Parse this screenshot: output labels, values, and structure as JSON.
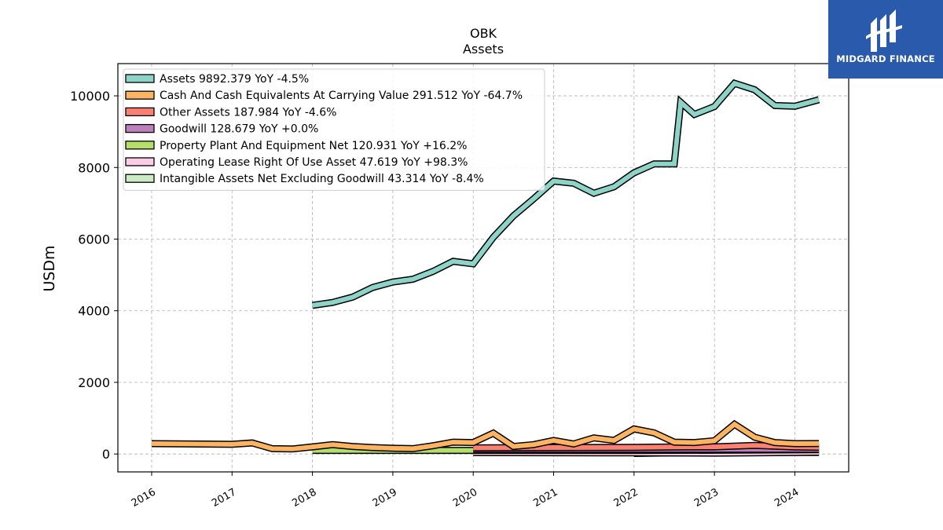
{
  "brand": {
    "name": "MIDGARD FINANCE",
    "logo_icon": "midgard-logo-icon",
    "color": "#2a5aac"
  },
  "chart_data": {
    "type": "line",
    "title": "OBK",
    "subtitle": "Assets",
    "ylabel": "USDm",
    "xlabel": "",
    "ylim": [
      -500,
      10900
    ],
    "xlim": [
      2015.58,
      2024.67
    ],
    "yticks": [
      0,
      2000,
      4000,
      6000,
      8000,
      10000
    ],
    "ytick_labels": [
      "0",
      "2000",
      "4000",
      "6000",
      "8000",
      "10000"
    ],
    "xticks": [
      2016,
      2017,
      2018,
      2019,
      2020,
      2021,
      2022,
      2023,
      2024
    ],
    "xtick_labels": [
      "2016",
      "2017",
      "2018",
      "2019",
      "2020",
      "2021",
      "2022",
      "2023",
      "2024"
    ],
    "grid": true,
    "legend_position": "top-left",
    "series": [
      {
        "name": "Assets",
        "legend": "Assets  9892.379 YoY -4.5%",
        "color": "#8dd3c7",
        "x": [
          2018.0,
          2018.25,
          2018.5,
          2018.75,
          2019.0,
          2019.25,
          2019.5,
          2019.75,
          2020.0,
          2020.25,
          2020.5,
          2020.75,
          2021.0,
          2021.25,
          2021.5,
          2021.75,
          2022.0,
          2022.25,
          2022.5,
          2022.58,
          2022.75,
          2023.0,
          2023.25,
          2023.5,
          2023.75,
          2024.0,
          2024.3
        ],
        "y": [
          4150,
          4230,
          4380,
          4650,
          4800,
          4880,
          5100,
          5380,
          5310,
          6050,
          6650,
          7120,
          7620,
          7560,
          7280,
          7460,
          7850,
          8100,
          8100,
          9820,
          9480,
          9700,
          10350,
          10170,
          9730,
          9710,
          9892
        ]
      },
      {
        "name": "Cash And Cash Equivalents At Carrying Value",
        "legend": "Cash And Cash Equivalents At Carrying Value  291.512 YoY -64.7%",
        "color": "#fdb462",
        "x": [
          2016.0,
          2017.0,
          2017.25,
          2017.5,
          2017.75,
          2018.0,
          2018.25,
          2018.5,
          2018.75,
          2019.0,
          2019.25,
          2019.5,
          2019.75,
          2020.0,
          2020.25,
          2020.5,
          2020.75,
          2021.0,
          2021.25,
          2021.5,
          2021.75,
          2022.0,
          2022.25,
          2022.5,
          2022.75,
          2023.0,
          2023.25,
          2023.5,
          2023.75,
          2024.0,
          2024.3
        ],
        "y": [
          290,
          270,
          310,
          150,
          140,
          200,
          260,
          210,
          180,
          160,
          150,
          230,
          330,
          320,
          580,
          210,
          260,
          380,
          280,
          450,
          380,
          700,
          590,
          330,
          320,
          370,
          830,
          470,
          320,
          290,
          292
        ]
      },
      {
        "name": "Other Assets",
        "legend": "Other Assets  187.984 YoY -4.6%",
        "color": "#fb8072",
        "x": [
          2020.0,
          2021.0,
          2022.0,
          2022.5,
          2023.0,
          2023.5,
          2024.0,
          2024.3
        ],
        "y": [
          170,
          180,
          185,
          195,
          200,
          240,
          197,
          188
        ]
      },
      {
        "name": "Goodwill",
        "legend": "Goodwill  128.679 YoY +0.0%",
        "color": "#bc80bd",
        "x": [
          2020.0,
          2024.3
        ],
        "y": [
          128.679,
          128.679
        ]
      },
      {
        "name": "Property Plant And Equipment Net",
        "legend": "Property Plant And Equipment Net  120.931 YoY +16.2%",
        "color": "#b3de69",
        "x": [
          2018.0,
          2020.0,
          2022.0,
          2023.0,
          2024.3
        ],
        "y": [
          100,
          100,
          100,
          105,
          121
        ]
      },
      {
        "name": "Operating Lease Right Of Use Asset",
        "legend": "Operating Lease Right Of Use Asset  47.619 YoY +98.3%",
        "color": "#fccde5",
        "x": [
          2020.0,
          2022.0,
          2023.0,
          2024.3
        ],
        "y": [
          40,
          30,
          24,
          47.6
        ]
      },
      {
        "name": "Intangible Assets Net Excluding Goodwill",
        "legend": "Intangible Assets Net Excluding Goodwill  43.314 YoY -8.4%",
        "color": "#ccebc5",
        "x": [
          2022.0,
          2023.0,
          2024.3
        ],
        "y": [
          15,
          47,
          43.3
        ]
      }
    ]
  }
}
